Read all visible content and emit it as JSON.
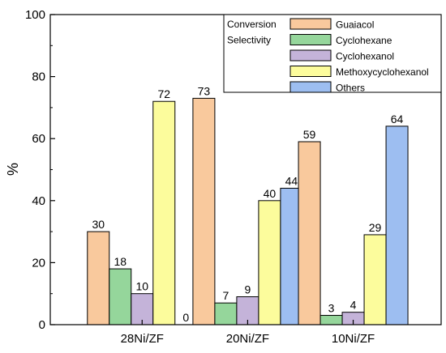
{
  "chart_data": {
    "type": "bar",
    "ylabel": "%",
    "ylim": [
      0,
      100
    ],
    "yticks": [
      0,
      20,
      40,
      60,
      80,
      100
    ],
    "categories": [
      "28Ni/ZF",
      "20Ni/ZF",
      "10Ni/ZF"
    ],
    "legend_position": "top-right",
    "legend_group_labels": [
      "Conversion",
      "Selectivity"
    ],
    "series": [
      {
        "name": "Guaiacol",
        "values": [
          30,
          73,
          59
        ],
        "color": "#F9C99D"
      },
      {
        "name": "Cyclohexane",
        "values": [
          18,
          7,
          3
        ],
        "color": "#95D69B"
      },
      {
        "name": "Cyclohexanol",
        "values": [
          10,
          9,
          4
        ],
        "color": "#C4B3D9"
      },
      {
        "name": "Methoxycyclohexanol",
        "values": [
          72,
          40,
          29
        ],
        "color": "#FCFC9C"
      },
      {
        "name": "Others",
        "values": [
          0,
          44,
          64
        ],
        "color": "#9DBEF1"
      }
    ]
  }
}
